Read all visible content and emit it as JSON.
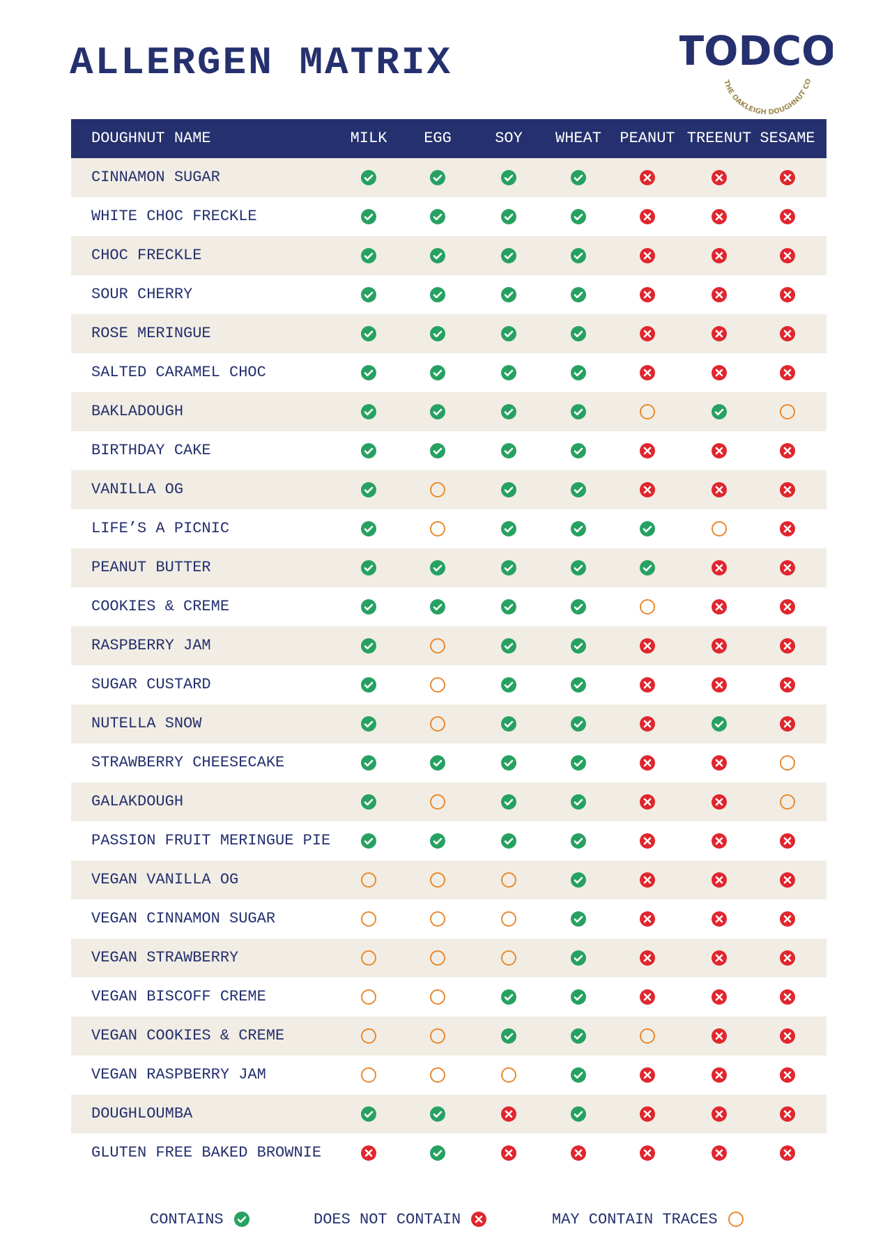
{
  "header": {
    "title": "ALLERGEN MATRIX",
    "logo": "TODCO",
    "logo_tagline": "THE OAKLEIGH DOUGHNUT CO"
  },
  "table": {
    "columns": [
      "DOUGHNUT NAME",
      "MILK",
      "EGG",
      "SOY",
      "WHEAT",
      "PEANUT",
      "TREENUT",
      "SESAME"
    ],
    "rows": [
      {
        "name": "CINNAMON SUGAR",
        "cells": [
          0,
          0,
          0,
          0,
          1,
          1,
          1
        ]
      },
      {
        "name": "WHITE CHOC FRECKLE",
        "cells": [
          0,
          0,
          0,
          0,
          1,
          1,
          1
        ]
      },
      {
        "name": "CHOC FRECKLE",
        "cells": [
          0,
          0,
          0,
          0,
          1,
          1,
          1
        ]
      },
      {
        "name": "SOUR CHERRY",
        "cells": [
          0,
          0,
          0,
          0,
          1,
          1,
          1
        ]
      },
      {
        "name": "ROSE MERINGUE",
        "cells": [
          0,
          0,
          0,
          0,
          1,
          1,
          1
        ]
      },
      {
        "name": "SALTED CARAMEL CHOC",
        "cells": [
          0,
          0,
          0,
          0,
          1,
          1,
          1
        ]
      },
      {
        "name": "BAKLADOUGH",
        "cells": [
          0,
          0,
          0,
          0,
          2,
          0,
          2
        ]
      },
      {
        "name": "BIRTHDAY CAKE",
        "cells": [
          0,
          0,
          0,
          0,
          1,
          1,
          1
        ]
      },
      {
        "name": "VANILLA OG",
        "cells": [
          0,
          2,
          0,
          0,
          1,
          1,
          1
        ]
      },
      {
        "name": "LIFE’S A PICNIC",
        "cells": [
          0,
          2,
          0,
          0,
          0,
          2,
          1
        ]
      },
      {
        "name": "PEANUT BUTTER",
        "cells": [
          0,
          0,
          0,
          0,
          0,
          1,
          1
        ]
      },
      {
        "name": "COOKIES & CREME",
        "cells": [
          0,
          0,
          0,
          0,
          2,
          1,
          1
        ]
      },
      {
        "name": "RASPBERRY JAM",
        "cells": [
          0,
          2,
          0,
          0,
          1,
          1,
          1
        ]
      },
      {
        "name": "SUGAR CUSTARD",
        "cells": [
          0,
          2,
          0,
          0,
          1,
          1,
          1
        ]
      },
      {
        "name": "NUTELLA SNOW",
        "cells": [
          0,
          2,
          0,
          0,
          1,
          0,
          1
        ]
      },
      {
        "name": "STRAWBERRY CHEESECAKE",
        "cells": [
          0,
          0,
          0,
          0,
          1,
          1,
          2
        ]
      },
      {
        "name": "GALAKDOUGH",
        "cells": [
          0,
          2,
          0,
          0,
          1,
          1,
          2
        ]
      },
      {
        "name": "PASSION FRUIT MERINGUE PIE",
        "cells": [
          0,
          0,
          0,
          0,
          1,
          1,
          1
        ]
      },
      {
        "name": "VEGAN VANILLA OG",
        "cells": [
          2,
          2,
          2,
          0,
          1,
          1,
          1
        ]
      },
      {
        "name": "VEGAN CINNAMON SUGAR",
        "cells": [
          2,
          2,
          2,
          0,
          1,
          1,
          1
        ]
      },
      {
        "name": "VEGAN STRAWBERRY",
        "cells": [
          2,
          2,
          2,
          0,
          1,
          1,
          1
        ]
      },
      {
        "name": "VEGAN BISCOFF CREME",
        "cells": [
          2,
          2,
          0,
          0,
          1,
          1,
          1
        ]
      },
      {
        "name": "VEGAN COOKIES & CREME",
        "cells": [
          2,
          2,
          0,
          0,
          2,
          1,
          1
        ]
      },
      {
        "name": "VEGAN RASPBERRY JAM",
        "cells": [
          2,
          2,
          2,
          0,
          1,
          1,
          1
        ]
      },
      {
        "name": "DOUGHLOUMBA",
        "cells": [
          0,
          0,
          1,
          0,
          1,
          1,
          1
        ]
      },
      {
        "name": "GLUTEN FREE BAKED BROWNIE",
        "cells": [
          1,
          0,
          1,
          1,
          1,
          1,
          1
        ]
      }
    ]
  },
  "legend": {
    "items": [
      {
        "label": "CONTAINS"
      },
      {
        "label": "DOES NOT CONTAIN"
      },
      {
        "label": "MAY CONTAIN TRACES"
      }
    ]
  }
}
